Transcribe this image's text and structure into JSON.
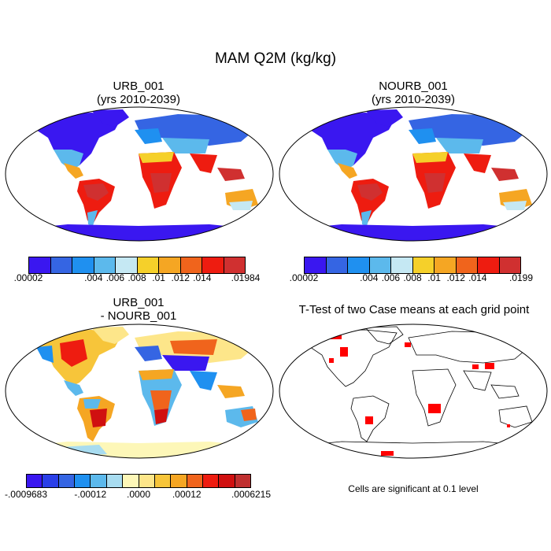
{
  "title": "MAM Q2M (kg/kg)",
  "panels": {
    "p1": {
      "title_line1": "URB_001",
      "title_line2": "(yrs 2010-2039)"
    },
    "p2": {
      "title_line1": "NOURB_001",
      "title_line2": "(yrs 2010-2039)"
    },
    "p3": {
      "title_line1": "URB_001",
      "title_line2": "- NOURB_001"
    },
    "p4": {
      "title_line1": "T-Test of two Case means at each grid point",
      "note": "Cells are significant at 0.1 level"
    }
  },
  "colorbars": {
    "abs": {
      "colors": [
        "#3a17f0",
        "#3565e3",
        "#1f90f0",
        "#5cb9ec",
        "#c5e8f3",
        "#f5d02a",
        "#f5a623",
        "#f0641c",
        "#ee1c10",
        "#d03030"
      ],
      "labels_left": [
        ".00002",
        ".004",
        ".006",
        ".008",
        ".01",
        ".012",
        ".014",
        ".01984"
      ],
      "labels_right": [
        ".00002",
        ".004",
        ".006",
        ".008",
        ".01",
        ".012",
        ".014",
        ".0199"
      ]
    },
    "diff": {
      "colors": [
        "#3a17f0",
        "#2a3fe8",
        "#3565e3",
        "#1f90f0",
        "#5cb9ec",
        "#a8dcf0",
        "#fdf7b8",
        "#fde68a",
        "#f7c53a",
        "#f5a623",
        "#f0641c",
        "#ee1c10",
        "#d01010",
        "#c03030"
      ],
      "labels": [
        "-.0009683",
        "-.00012",
        ".0000",
        ".00012",
        ".0006215"
      ]
    }
  },
  "significance_color": "#ff0000"
}
